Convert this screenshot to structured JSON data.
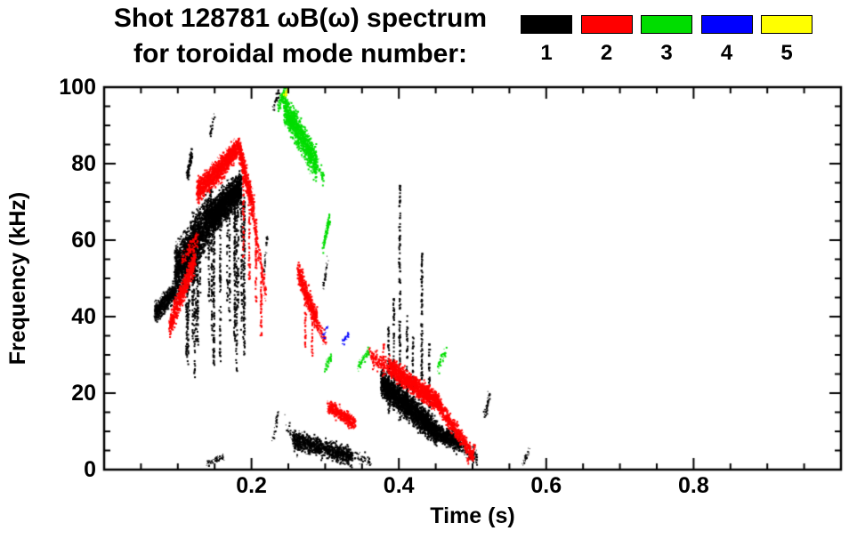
{
  "chart_data": {
    "type": "scatter",
    "title": "Shot 128781 ωB(ω) spectrum",
    "subtitle": "for toroidal mode number:",
    "xlabel": "Time (s)",
    "ylabel": "Frequency (kHz)",
    "xlim": [
      0,
      1
    ],
    "ylim": [
      0,
      100
    ],
    "grid": false,
    "legend_position": "top-right",
    "xticks": [
      {
        "v": 0.2,
        "label": "0.2"
      },
      {
        "v": 0.4,
        "label": "0.4"
      },
      {
        "v": 0.6,
        "label": "0.6"
      },
      {
        "v": 0.8,
        "label": "0.8"
      }
    ],
    "yticks": [
      {
        "v": 0,
        "label": "0"
      },
      {
        "v": 20,
        "label": "20"
      },
      {
        "v": 40,
        "label": "40"
      },
      {
        "v": 60,
        "label": "60"
      },
      {
        "v": 80,
        "label": "80"
      },
      {
        "v": 100,
        "label": "100"
      }
    ],
    "x_minor_step": 0.05,
    "y_minor_step": 5,
    "legend": [
      {
        "label": "1",
        "color": "#000000"
      },
      {
        "label": "2",
        "color": "#ff0000"
      },
      {
        "label": "3",
        "color": "#00dd00"
      },
      {
        "label": "4",
        "color": "#0000ff"
      },
      {
        "label": "5",
        "color": "#ffff00"
      }
    ],
    "series": [
      {
        "name": "toroidal mode n=1",
        "color": "#000000",
        "clusters": [
          {
            "t": [
              0.068,
              0.095
            ],
            "f": [
              41,
              47
            ],
            "spread": 2.5,
            "pts": 500
          },
          {
            "t": [
              0.095,
              0.145
            ],
            "f": [
              51,
              67
            ],
            "spread": 6.5,
            "pts": 2200
          },
          {
            "t": [
              0.145,
              0.185
            ],
            "f": [
              66,
              74
            ],
            "spread": 4,
            "pts": 1800
          },
          {
            "t": [
              0.112,
              0.118
            ],
            "f": [
              77,
              83
            ],
            "spread": 1.5,
            "pts": 90
          },
          {
            "t": [
              0.142,
              0.148
            ],
            "f": [
              87,
              92
            ],
            "spread": 1.2,
            "pts": 30,
            "sparse": true
          },
          {
            "t": [
              0.228,
              0.236
            ],
            "f": [
              94,
              99
            ],
            "spread": 1.5,
            "pts": 45,
            "sparse": true
          },
          {
            "t": [
              0.228,
              0.235
            ],
            "f": [
              8,
              15
            ],
            "spread": 1.5,
            "pts": 40,
            "sparse": true
          },
          {
            "t": [
              0.245,
              0.262
            ],
            "f": [
              13,
              5
            ],
            "spread": 2.5,
            "pts": 70,
            "sparse": true
          },
          {
            "t": [
              0.255,
              0.335
            ],
            "f": [
              8,
              3.5
            ],
            "spread": 2.3,
            "pts": 950
          },
          {
            "t": [
              0.335,
              0.362
            ],
            "f": [
              4,
              2.5
            ],
            "spread": 1.3,
            "pts": 80,
            "sparse": true
          },
          {
            "t": [
              0.375,
              0.45
            ],
            "f": [
              23,
              10
            ],
            "spread": 3.2,
            "pts": 2400
          },
          {
            "t": [
              0.45,
              0.482
            ],
            "f": [
              10,
              7
            ],
            "spread": 2.2,
            "pts": 600
          },
          {
            "t": [
              0.482,
              0.506
            ],
            "f": [
              6,
              3
            ],
            "spread": 1.8,
            "pts": 160,
            "sparse": true
          },
          {
            "t": [
              0.515,
              0.523
            ],
            "f": [
              14,
              20
            ],
            "spread": 1.5,
            "pts": 60,
            "sparse": true
          },
          {
            "t": [
              0.138,
              0.162
            ],
            "f": [
              2,
              3.5
            ],
            "spread": 1,
            "pts": 50,
            "sparse": true
          },
          {
            "t": [
              0.568,
              0.576
            ],
            "f": [
              2,
              5
            ],
            "spread": 1,
            "pts": 40,
            "sparse": true
          },
          {
            "t": [
              0.296,
              0.303
            ],
            "f": [
              48,
              55
            ],
            "spread": 1.5,
            "pts": 50,
            "sparse": true
          },
          {
            "t": [
              0.216,
              0.221
            ],
            "f": [
              52,
              62
            ],
            "spread": 1.5,
            "pts": 45,
            "sparse": true
          }
        ],
        "streak_sets": [
          {
            "t": [
              0.1,
              0.195
            ],
            "count": 26,
            "ftop": [
              56,
              73
            ],
            "fbot": [
              24,
              46
            ]
          }
        ],
        "streaks": [
          {
            "t": 0.4,
            "f": [
              13,
              75
            ]
          },
          {
            "t": 0.43,
            "f": [
              12,
              57
            ]
          },
          {
            "t": 0.385,
            "f": [
              15,
              38
            ]
          },
          {
            "t": 0.392,
            "f": [
              14,
              45
            ]
          },
          {
            "t": 0.41,
            "f": [
              13,
              42
            ]
          },
          {
            "t": 0.44,
            "f": [
              11,
              33
            ]
          },
          {
            "t": 0.418,
            "f": [
              13,
              35
            ]
          }
        ]
      },
      {
        "name": "toroidal mode n=2",
        "color": "#ff0000",
        "clusters": [
          {
            "t": [
              0.088,
              0.122
            ],
            "f": [
              38,
              55
            ],
            "spread": 3,
            "pts": 650
          },
          {
            "t": [
              0.104,
              0.126
            ],
            "f": [
              55,
              61
            ],
            "spread": 2,
            "pts": 150,
            "sparse": true
          },
          {
            "t": [
              0.125,
              0.162
            ],
            "f": [
              73,
              80
            ],
            "spread": 3,
            "pts": 900
          },
          {
            "t": [
              0.162,
              0.182
            ],
            "f": [
              80,
              85
            ],
            "spread": 2.5,
            "pts": 500
          },
          {
            "t": [
              0.182,
              0.202
            ],
            "f": [
              84,
              68
            ],
            "spread": 3,
            "pts": 500
          },
          {
            "t": [
              0.202,
              0.218
            ],
            "f": [
              66,
              46
            ],
            "spread": 2.5,
            "pts": 260,
            "sparse": true
          },
          {
            "t": [
              0.262,
              0.288
            ],
            "f": [
              52,
              39
            ],
            "spread": 2.8,
            "pts": 520
          },
          {
            "t": [
              0.288,
              0.3
            ],
            "f": [
              38,
              34
            ],
            "spread": 1.8,
            "pts": 110,
            "sparse": true
          },
          {
            "t": [
              0.302,
              0.34
            ],
            "f": [
              17,
              12
            ],
            "spread": 1.7,
            "pts": 380
          },
          {
            "t": [
              0.358,
              0.386
            ],
            "f": [
              30,
              27
            ],
            "spread": 2,
            "pts": 260,
            "sparse": true
          },
          {
            "t": [
              0.386,
              0.456
            ],
            "f": [
              27,
              17
            ],
            "spread": 2.4,
            "pts": 1500
          },
          {
            "t": [
              0.456,
              0.5
            ],
            "f": [
              16,
              4
            ],
            "spread": 2,
            "pts": 480
          },
          {
            "t": [
              0.492,
              0.503
            ],
            "f": [
              2.5,
              6
            ],
            "spread": 1.2,
            "pts": 70,
            "sparse": true
          }
        ],
        "streak_sets": [],
        "streaks": [
          {
            "t": 0.188,
            "f": [
              55,
              80
            ]
          },
          {
            "t": 0.196,
            "f": [
              50,
              76
            ]
          },
          {
            "t": 0.205,
            "f": [
              44,
              66
            ]
          },
          {
            "t": 0.212,
            "f": [
              35,
              50
            ]
          },
          {
            "t": 0.272,
            "f": [
              32,
              42
            ]
          },
          {
            "t": 0.281,
            "f": [
              30,
              40
            ]
          },
          {
            "t": 0.378,
            "f": [
              24,
              33
            ]
          }
        ]
      },
      {
        "name": "toroidal mode n=3",
        "color": "#00dd00",
        "clusters": [
          {
            "t": [
              0.243,
              0.287
            ],
            "f": [
              95,
              80
            ],
            "spread": 4,
            "pts": 1100
          },
          {
            "t": [
              0.235,
              0.247
            ],
            "f": [
              95,
              100
            ],
            "spread": 1.5,
            "pts": 70
          },
          {
            "t": [
              0.287,
              0.297
            ],
            "f": [
              80,
              76
            ],
            "spread": 2,
            "pts": 70,
            "sparse": true
          },
          {
            "t": [
              0.296,
              0.305
            ],
            "f": [
              58,
              66
            ],
            "spread": 1.5,
            "pts": 90
          },
          {
            "t": [
              0.298,
              0.307
            ],
            "f": [
              26,
              30
            ],
            "spread": 1.2,
            "pts": 55,
            "sparse": true
          },
          {
            "t": [
              0.344,
              0.357
            ],
            "f": [
              27,
              31
            ],
            "spread": 1.4,
            "pts": 70,
            "sparse": true
          },
          {
            "t": [
              0.452,
              0.463
            ],
            "f": [
              27,
              31
            ],
            "spread": 1.4,
            "pts": 70,
            "sparse": true
          }
        ],
        "streak_sets": [],
        "streaks": []
      },
      {
        "name": "toroidal mode n=4",
        "color": "#0000ff",
        "clusters": [
          {
            "t": [
              0.296,
              0.303
            ],
            "f": [
              35,
              38
            ],
            "spread": 1,
            "pts": 35,
            "sparse": true
          },
          {
            "t": [
              0.322,
              0.331
            ],
            "f": [
              33,
              36
            ],
            "spread": 1,
            "pts": 40,
            "sparse": true
          }
        ],
        "streak_sets": [],
        "streaks": []
      },
      {
        "name": "toroidal mode n=5",
        "color": "#ffff00",
        "clusters": [
          {
            "t": [
              0.243,
              0.249
            ],
            "f": [
              97.5,
              100
            ],
            "spread": 1,
            "pts": 25,
            "sparse": true
          }
        ],
        "streak_sets": [],
        "streaks": []
      }
    ]
  }
}
